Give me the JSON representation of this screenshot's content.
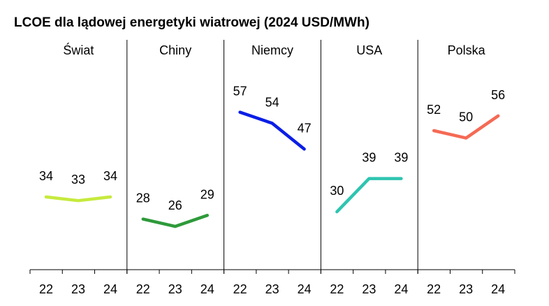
{
  "chart_data": {
    "type": "line",
    "title": "LCOE dla lądowej energetyki wiatrowej  (2024 USD/MWh)",
    "x": [
      "22",
      "23",
      "24"
    ],
    "panels": [
      {
        "name": "Świat",
        "color": "#c6ea3d",
        "values": [
          34,
          33,
          34
        ]
      },
      {
        "name": "Chiny",
        "color": "#2e9a3a",
        "values": [
          28,
          26,
          29
        ]
      },
      {
        "name": "Niemcy",
        "color": "#0a1ee6",
        "values": [
          57,
          54,
          47
        ]
      },
      {
        "name": "USA",
        "color": "#2ec4b0",
        "values": [
          30,
          39,
          39
        ]
      },
      {
        "name": "Polska",
        "color": "#f56a55",
        "values": [
          52,
          50,
          56
        ]
      }
    ],
    "grid": false,
    "legend": "none"
  }
}
